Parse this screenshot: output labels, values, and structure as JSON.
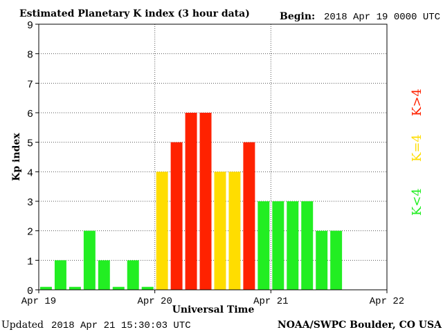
{
  "header": {
    "title": "Estimated Planetary K index (3 hour data)",
    "begin_label": "Begin:",
    "begin_value": "2018 Apr 19 0000 UTC"
  },
  "footer": {
    "updated_label": "Updated",
    "updated_value": "2018 Apr 21 15:30:03 UTC",
    "credit": "NOAA/SWPC Boulder, CO USA"
  },
  "legend": {
    "high": "K>4",
    "mid": "K=4",
    "low": "K<4"
  },
  "colors": {
    "low": "#22ee22",
    "mid": "#ffdd00",
    "high": "#ff2200",
    "axis": "#000000",
    "grid": "#555555"
  },
  "chart_data": {
    "type": "bar",
    "title": "Estimated Planetary K index (3 hour data)",
    "xlabel": "Universal Time",
    "ylabel": "Kp index",
    "ylim": [
      0,
      9
    ],
    "yticks": [
      "0",
      "1",
      "2",
      "3",
      "4",
      "5",
      "6",
      "7",
      "8",
      "9"
    ],
    "xticks": [
      "Apr 19",
      "Apr 20",
      "Apr 21",
      "Apr 22"
    ],
    "bar_interval_hours": 3,
    "grid": true,
    "values": [
      0,
      1,
      0,
      2,
      1,
      0,
      1,
      0,
      4,
      5,
      6,
      6,
      4,
      4,
      5,
      3,
      3,
      3,
      3,
      2,
      2
    ]
  }
}
